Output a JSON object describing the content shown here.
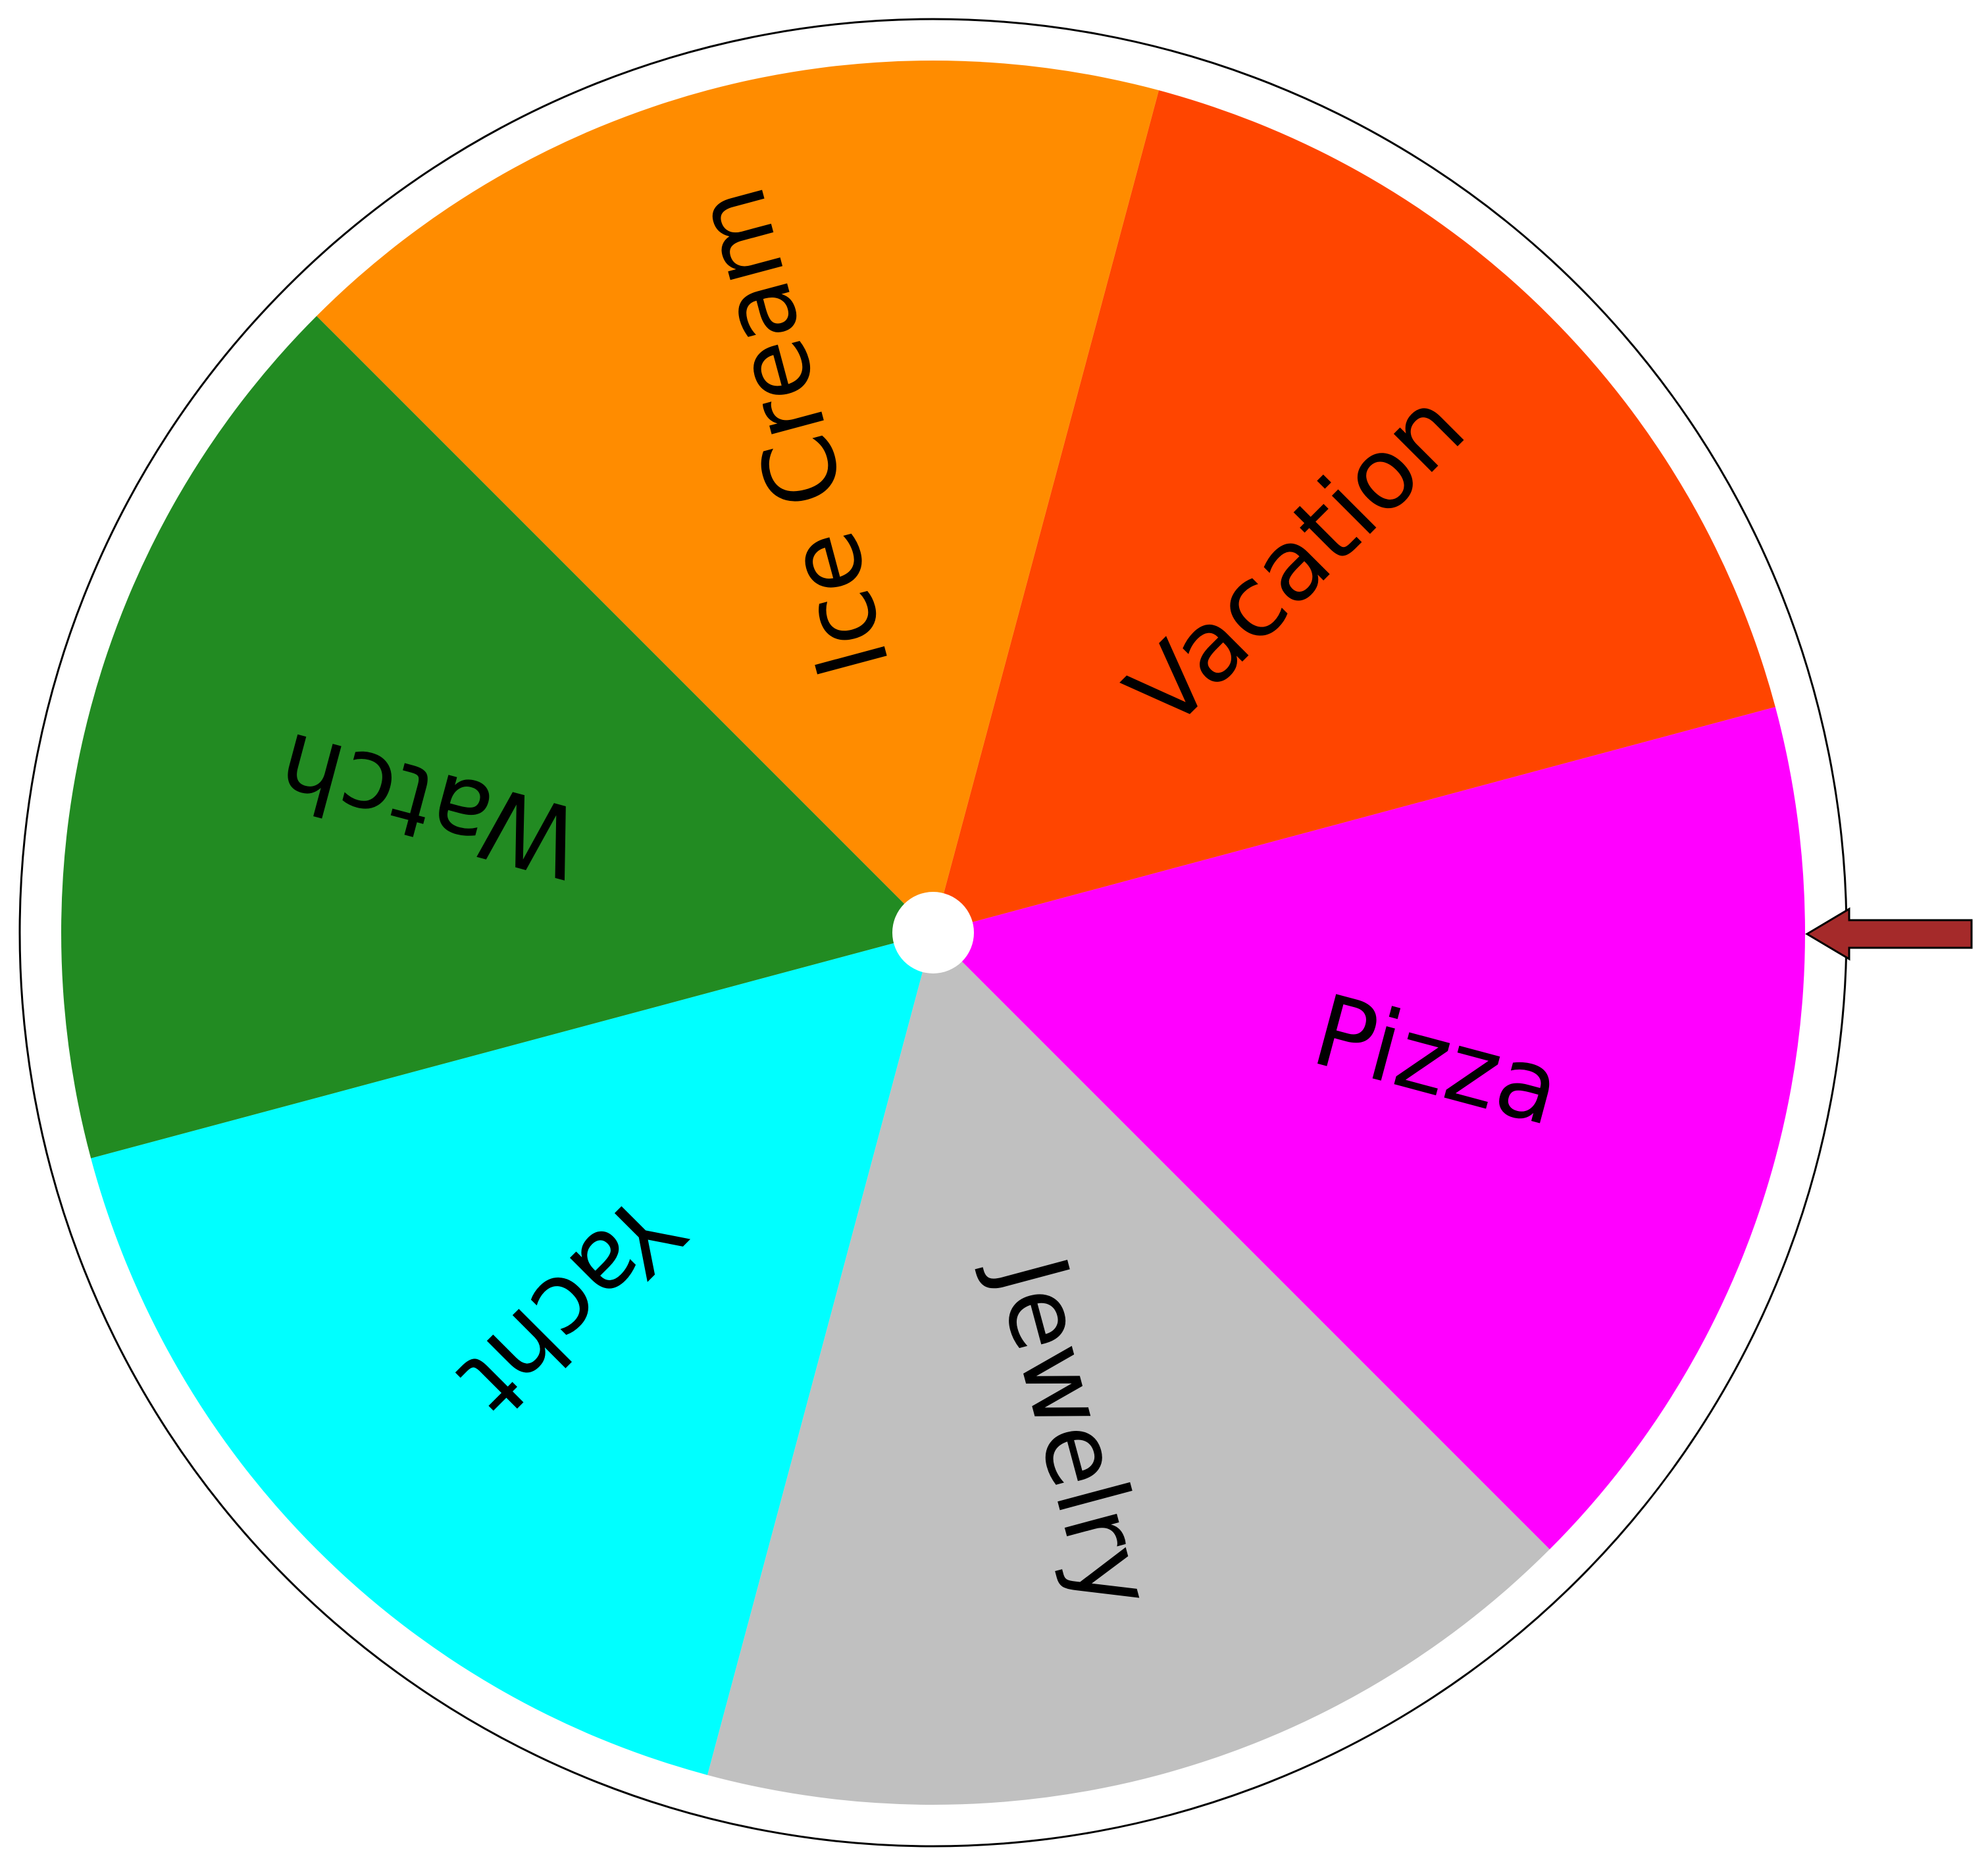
{
  "wheel": {
    "segments": [
      {
        "label": "Vacation",
        "color": "#FF4500"
      },
      {
        "label": "Ice Cream",
        "color": "#FF8C00"
      },
      {
        "label": "Watch",
        "color": "#228B22"
      },
      {
        "label": "Yacht",
        "color": "#00FFFF"
      },
      {
        "label": "Jewelry",
        "color": "#C0C0C0"
      },
      {
        "label": "Pizza",
        "color": "#FF00FF"
      }
    ],
    "rim_color": "#FFFFFF",
    "outline_color": "#000000",
    "hub_color": "#FFFFFF",
    "label_color": "#000000"
  },
  "pointer": {
    "icon": "arrow-left-icon",
    "color": "#A52A2A"
  }
}
